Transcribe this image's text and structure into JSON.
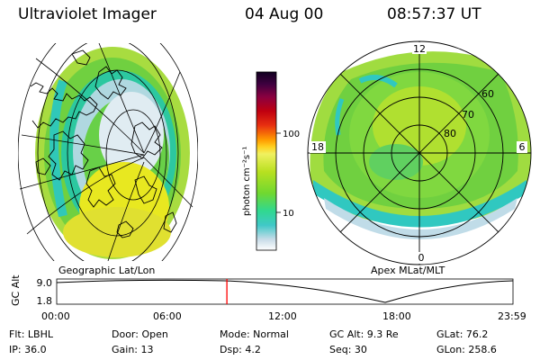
{
  "header": {
    "title": "Ultraviolet Imager",
    "date": "04 Aug 00",
    "time": "08:57:37 UT"
  },
  "geo_panel": {
    "caption": "Geographic Lat/Lon"
  },
  "polar_panel": {
    "caption": "Apex MLat/MLT",
    "mlt_labels": {
      "top": "12",
      "left": "18",
      "right": "6",
      "bottom": "0"
    },
    "lat_labels": [
      "60",
      "70",
      "80"
    ]
  },
  "colorbar": {
    "unit_label": "photon cm⁻²s⁻¹",
    "ticks": [
      "100",
      "10"
    ]
  },
  "altitude_plot": {
    "ylabel": "GC Alt",
    "yticks": [
      "9.0",
      "1.8"
    ],
    "xticks": [
      "00:00",
      "06:00",
      "12:00",
      "18:00",
      "23:59"
    ],
    "current_time_fraction": 0.373,
    "marker_color": "#ff0000"
  },
  "info": {
    "row1": [
      "Flt: LBHL",
      "Door: Open",
      "Mode: Normal",
      "GC Alt: 9.3 Re",
      "GLat:  76.2"
    ],
    "row2": [
      "IP: 36.0",
      "Gain: 13",
      "Dsp:     4.2",
      "Seq: 30",
      "GLon: 258.6"
    ]
  }
}
